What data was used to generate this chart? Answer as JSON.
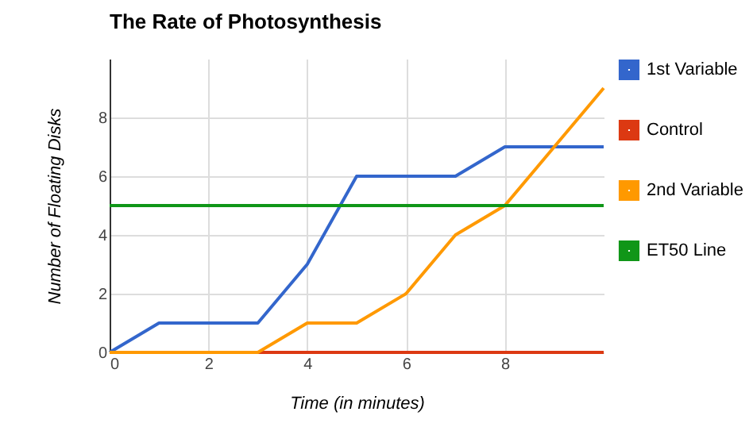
{
  "chart_data": {
    "type": "line",
    "title": "The Rate of Photosynthesis",
    "xlabel": "Time (in minutes)",
    "ylabel": "Number of Floating Disks",
    "x": [
      0,
      1,
      2,
      3,
      4,
      5,
      6,
      7,
      8,
      9,
      10
    ],
    "series": [
      {
        "name": "1st Variable",
        "color": "#3366cc",
        "values": [
          0,
          1,
          1,
          1,
          3,
          6,
          6,
          6,
          7,
          7,
          7
        ]
      },
      {
        "name": "Control",
        "color": "#dc3912",
        "values": [
          null,
          null,
          null,
          0,
          0,
          0,
          0,
          0,
          0,
          0,
          0
        ]
      },
      {
        "name": "2nd Variable",
        "color": "#ff9900",
        "values": [
          0,
          0,
          0,
          0,
          1,
          1,
          2,
          4,
          5,
          7,
          9
        ]
      },
      {
        "name": "ET50 Line",
        "color": "#109618",
        "values": [
          5,
          5,
          5,
          5,
          5,
          5,
          5,
          5,
          5,
          5,
          5
        ]
      }
    ],
    "xlim": [
      0,
      10
    ],
    "xticks": [
      0,
      2,
      4,
      6,
      8
    ],
    "ylim": [
      0,
      10
    ],
    "yticks": [
      0,
      2,
      4,
      6,
      8
    ],
    "grid": true,
    "legend": "top right"
  }
}
